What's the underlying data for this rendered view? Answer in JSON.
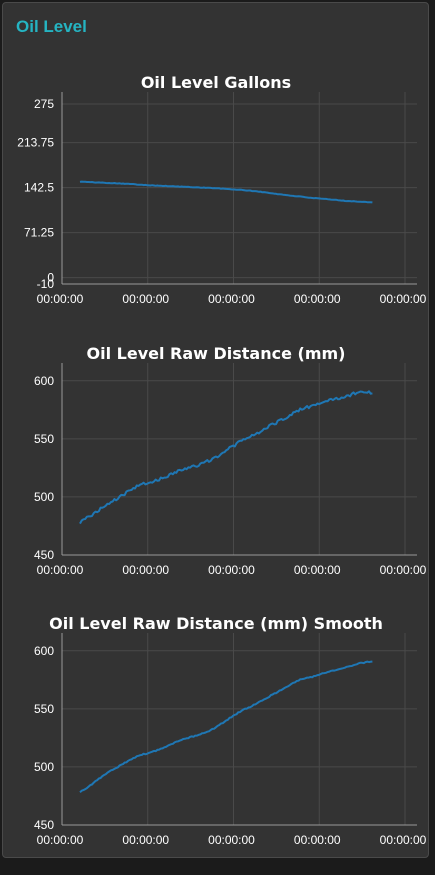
{
  "panel": {
    "title": "Oil Level"
  },
  "colors": {
    "series": "#1f77b4",
    "title": "#25b4c2"
  },
  "chart_data": [
    {
      "type": "line",
      "title": "Oil Level Gallons",
      "yticks": [
        "275",
        "213.75",
        "142.5",
        "71.25",
        "0",
        "-10"
      ],
      "ytick_values": [
        275,
        213.75,
        142.5,
        71.25,
        0,
        -10
      ],
      "ylim": [
        -10,
        275
      ],
      "xticks": [
        "00:00:00",
        "00:00:00",
        "00:00:00",
        "00:00:00",
        "00:00:00"
      ],
      "xlim": [
        0,
        100
      ],
      "noise": 0.4,
      "series": [
        {
          "x": [
            0,
            5,
            10,
            15,
            20,
            25,
            30,
            35,
            40,
            45,
            50,
            55,
            60,
            65,
            70,
            75,
            80,
            85,
            90,
            95,
            100
          ],
          "y": [
            152,
            151,
            150,
            149,
            147.5,
            146,
            145,
            144,
            143,
            142,
            140.5,
            139,
            137,
            134,
            131,
            128.5,
            126,
            124,
            122,
            120.5,
            119.5
          ]
        }
      ]
    },
    {
      "type": "line",
      "title": "Oil Level Raw Distance (mm)",
      "yticks": [
        "600",
        "550",
        "500",
        "450"
      ],
      "ytick_values": [
        600,
        550,
        500,
        450
      ],
      "ylim": [
        450,
        605
      ],
      "xticks": [
        "00:00:00",
        "00:00:00",
        "00:00:00",
        "00:00:00",
        "00:00:00"
      ],
      "xlim": [
        0,
        100
      ],
      "noise": 1.3,
      "series": [
        {
          "x": [
            0,
            5,
            10,
            15,
            20,
            25,
            30,
            35,
            40,
            45,
            50,
            55,
            60,
            65,
            70,
            75,
            80,
            85,
            90,
            95,
            100
          ],
          "y": [
            478,
            486,
            495,
            502,
            510,
            513,
            518,
            524,
            527,
            532,
            540,
            548,
            554,
            561,
            568,
            575,
            579,
            583,
            586,
            590,
            590
          ]
        }
      ]
    },
    {
      "type": "line",
      "title": "Oil Level Raw Distance (mm) Smooth",
      "yticks": [
        "600",
        "550",
        "500",
        "450"
      ],
      "ytick_values": [
        600,
        550,
        500,
        450
      ],
      "ylim": [
        450,
        605
      ],
      "xticks": [
        "00:00:00",
        "00:00:00",
        "00:00:00",
        "00:00:00",
        "00:00:00"
      ],
      "xlim": [
        0,
        100
      ],
      "noise": 0.5,
      "series": [
        {
          "x": [
            0,
            5,
            10,
            15,
            20,
            25,
            30,
            35,
            40,
            45,
            50,
            55,
            60,
            65,
            70,
            75,
            80,
            85,
            90,
            95,
            100
          ],
          "y": [
            478,
            487,
            496,
            503,
            510,
            513,
            518,
            524,
            527,
            532,
            540,
            548,
            554,
            561,
            568,
            575,
            578,
            582,
            585,
            589,
            591
          ]
        }
      ]
    }
  ]
}
